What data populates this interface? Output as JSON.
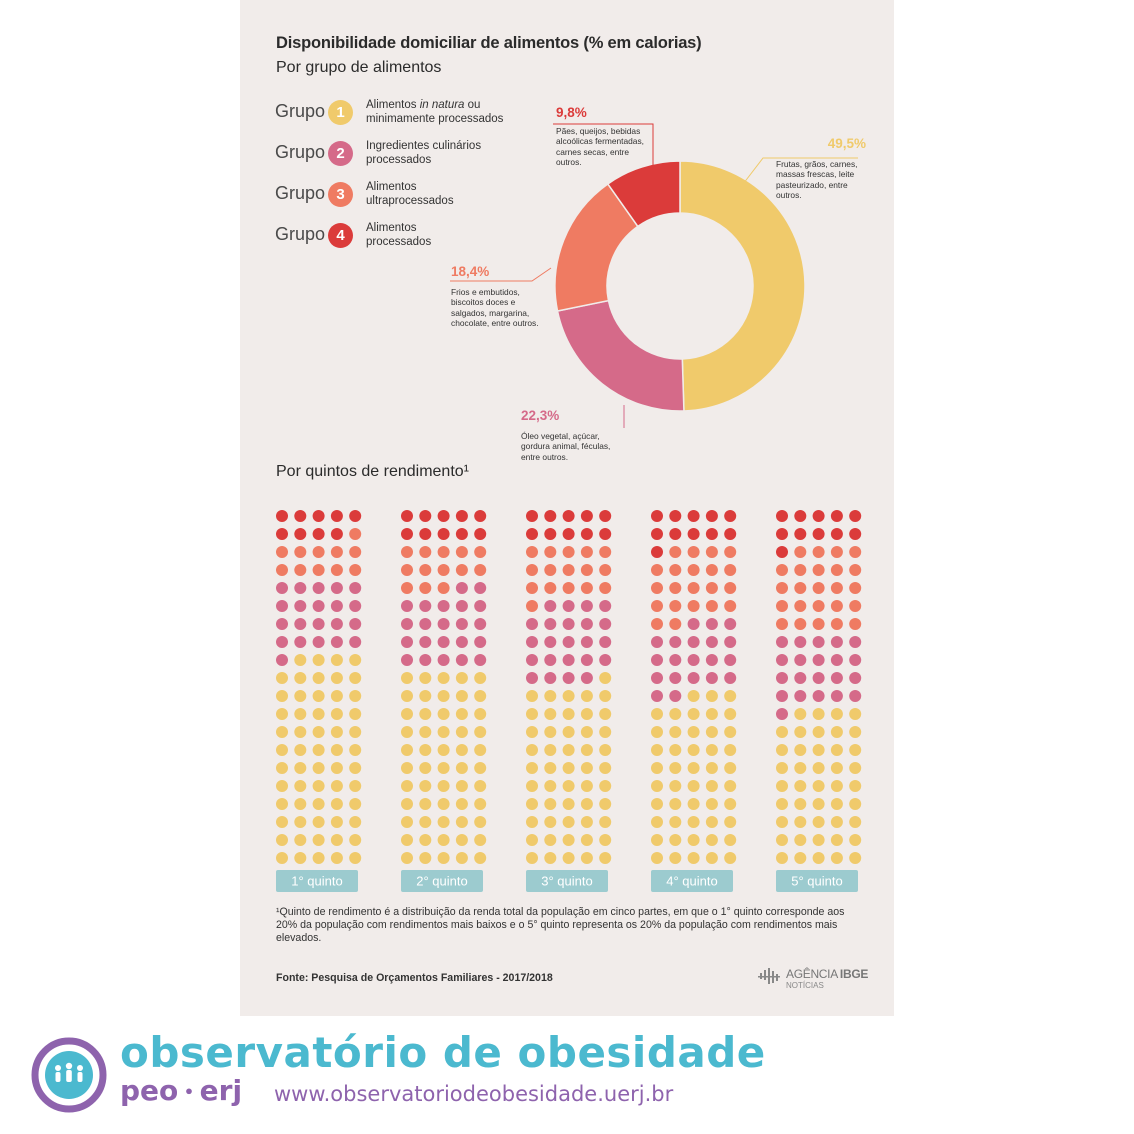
{
  "title": "Disponibilidade domiciliar de alimentos (% em calorias)",
  "subtitle_groups": "Por grupo de alimentos",
  "subtitle_quintiles": "Por quintos de rendimento¹",
  "colors": {
    "g1": "#f0ca6b",
    "g2": "#d56a89",
    "g3": "#ef7b62",
    "g4": "#db3b3a",
    "button": "#9ccbcf",
    "brand_teal": "#4bb9cf",
    "brand_purple": "#8e63ad"
  },
  "legend": [
    {
      "word": "Grupo",
      "num": "1",
      "desc_before": "Alimentos ",
      "desc_italic": "in natura",
      "desc_after": " ou minimamente processados"
    },
    {
      "word": "Grupo",
      "num": "2",
      "desc_before": "Ingredientes culinários processados",
      "desc_italic": "",
      "desc_after": ""
    },
    {
      "word": "Grupo",
      "num": "3",
      "desc_before": "Alimentos ultraprocessados",
      "desc_italic": "",
      "desc_after": ""
    },
    {
      "word": "Grupo",
      "num": "4",
      "desc_before": "Alimentos processados",
      "desc_italic": "",
      "desc_after": ""
    }
  ],
  "annotations": {
    "g1": {
      "pct": "49,5%",
      "text": "Frutas, grãos, carnes, massas frescas, leite pasteurizado, entre outros."
    },
    "g2": {
      "pct": "22,3%",
      "text": "Óleo vegetal, açúcar, gordura animal, féculas, entre outros."
    },
    "g3": {
      "pct": "18,4%",
      "text": "Frios e embutidos, biscoitos doces e salgados, margarina, chocolate, entre outros."
    },
    "g4": {
      "pct": "9,8%",
      "text": "Pães, queijos, bebidas alcoólicas fermentadas, carnes secas, entre outros."
    }
  },
  "chart_data": [
    {
      "type": "pie",
      "variant": "donut",
      "labels": [
        "Grupo 1",
        "Grupo 2",
        "Grupo 3",
        "Grupo 4"
      ],
      "values": [
        49.5,
        22.3,
        18.4,
        9.8
      ],
      "colors": [
        "#f0ca6b",
        "#d56a89",
        "#ef7b62",
        "#db3b3a"
      ]
    },
    {
      "type": "dot-matrix",
      "categories": [
        "1° quinto",
        "2° quinto",
        "3° quinto",
        "4° quinto",
        "5° quinto"
      ],
      "dots_per_column": 100,
      "series": [
        {
          "name": "Grupo 4",
          "color": "#db3b3a",
          "values": [
            9,
            10,
            10,
            11,
            11
          ]
        },
        {
          "name": "Grupo 3",
          "color": "#ef7b62",
          "values": [
            11,
            13,
            16,
            21,
            24
          ]
        },
        {
          "name": "Grupo 2",
          "color": "#d56a89",
          "values": [
            21,
            22,
            23,
            20,
            21
          ]
        },
        {
          "name": "Grupo 1",
          "color": "#f0ca6b",
          "values": [
            59,
            55,
            51,
            48,
            44
          ]
        }
      ]
    }
  ],
  "footnote": "¹Quinto de rendimento é a distribuição da renda total da população em cinco partes, em que o 1° quinto corresponde aos 20% da população com rendimentos mais baixos e o 5° quinto representa os 20% da população com rendimentos mais elevados.",
  "source": "Fonte: Pesquisa de Orçamentos Familiares - 2017/2018",
  "agency": {
    "line1_a": "AGÊNCIA",
    "line1_b": "IBGE",
    "line2": "NOTÍCIAS"
  },
  "brand": {
    "name": "observatório de obesidade",
    "sub_a": "peo",
    "sub_b": "erj",
    "url": "www.observatoriodeobesidade.uerj.br"
  }
}
